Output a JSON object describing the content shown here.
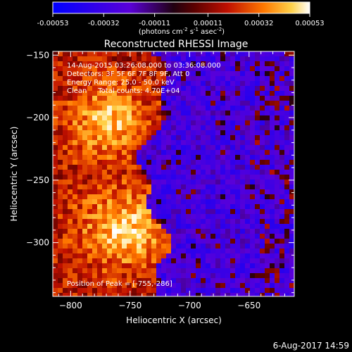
{
  "colorbar": {
    "ticks": [
      "-0.00053",
      "-0.00032",
      "-0.00011",
      "0.00011",
      "0.00032",
      "0.00053"
    ],
    "unit_main": "(photons cm",
    "unit_sup1": "-2",
    "unit_mid": " s",
    "unit_sup2": "-1",
    "unit_mid2": " asec",
    "unit_sup3": "-2",
    "unit_end": ")"
  },
  "chart_data": {
    "type": "heatmap",
    "title": "Reconstructed RHESSI Image",
    "xlabel": "Heliocentric X (arcsec)",
    "ylabel": "Heliocentric Y (arcsec)",
    "xlim": [
      -815,
      -612
    ],
    "ylim": [
      -343,
      -147
    ],
    "xticks": [
      -800,
      -750,
      -700,
      -650
    ],
    "yticks": [
      -150,
      -200,
      -250,
      -300
    ],
    "color_range": [
      -0.00053,
      0.00053
    ],
    "annotations": [
      "14-Aug-2015 03:26:08.000 to 03:36:08.000",
      "Detectors: 3F 5F 6F 7F 8F 9F, Att 0",
      "Energy Range: 25.0 - 50.0 keV",
      "Clean     Total counts: 4.70E+04"
    ],
    "peak_label": "Position of Peak = [-755,-286]",
    "peak": [
      -755,
      -286
    ]
  },
  "footer": {
    "timestamp": "6-Aug-2017 14:59"
  }
}
